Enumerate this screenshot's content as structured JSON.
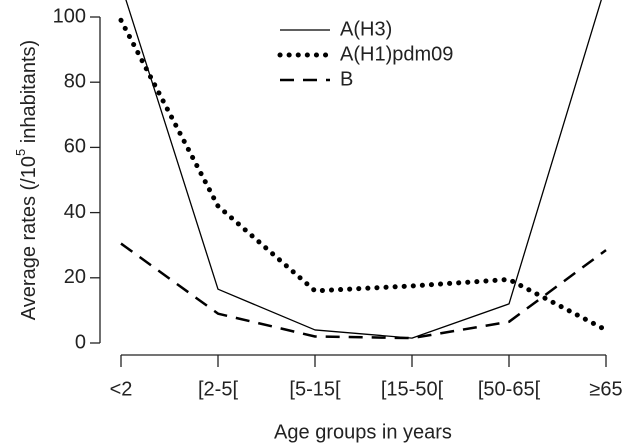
{
  "chart_data": {
    "type": "line",
    "x_label": "Age groups in years",
    "y_label_parts": [
      "Average rates (/10",
      "5",
      " inhabitants)"
    ],
    "categories": [
      "<2",
      "[2-5[",
      "[5-15[",
      "[15-50[",
      "[50-65[",
      "≥65"
    ],
    "series": [
      {
        "name": "A(H3)",
        "color": "#000000",
        "line_style": "solid",
        "values": [
          110,
          16.5,
          4,
          1.5,
          12,
          110
        ]
      },
      {
        "name": "A(H1)pdm09",
        "color": "#000000",
        "line_style": "dotted",
        "values": [
          99,
          42,
          16,
          17.5,
          19.5,
          4
        ]
      },
      {
        "name": "B",
        "color": "#000000",
        "line_style": "dashed",
        "values": [
          30.5,
          9,
          2,
          1.5,
          6.5,
          28.5
        ]
      }
    ],
    "ylim": [
      0,
      100
    ],
    "yticks": [
      0,
      20,
      40,
      60,
      80,
      100
    ],
    "grid": false,
    "legend": "top"
  }
}
